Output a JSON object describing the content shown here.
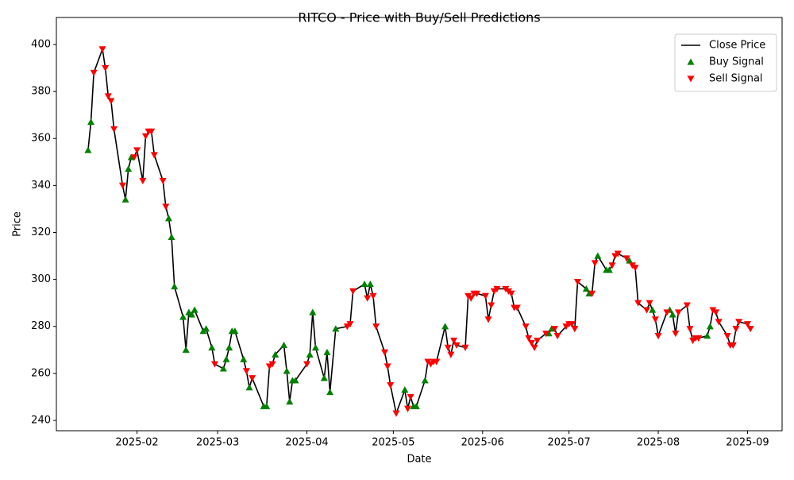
{
  "chart_data": {
    "type": "line",
    "title": "RITCO - Price with Buy/Sell Predictions",
    "x_label": "Date",
    "y_label": "Price",
    "x": [
      "2025-01-15",
      "2025-01-16",
      "2025-01-17",
      "2025-01-20",
      "2025-01-21",
      "2025-01-22",
      "2025-01-23",
      "2025-01-24",
      "2025-01-27",
      "2025-01-28",
      "2025-01-29",
      "2025-01-30",
      "2025-01-31",
      "2025-02-01",
      "2025-02-03",
      "2025-02-04",
      "2025-02-05",
      "2025-02-06",
      "2025-02-07",
      "2025-02-10",
      "2025-02-11",
      "2025-02-12",
      "2025-02-13",
      "2025-02-14",
      "2025-02-17",
      "2025-02-18",
      "2025-02-19",
      "2025-02-20",
      "2025-02-21",
      "2025-02-24",
      "2025-02-25",
      "2025-02-27",
      "2025-02-28",
      "2025-03-03",
      "2025-03-04",
      "2025-03-05",
      "2025-03-06",
      "2025-03-07",
      "2025-03-10",
      "2025-03-11",
      "2025-03-12",
      "2025-03-13",
      "2025-03-17",
      "2025-03-18",
      "2025-03-19",
      "2025-03-20",
      "2025-03-21",
      "2025-03-24",
      "2025-03-25",
      "2025-03-26",
      "2025-03-27",
      "2025-03-28",
      "2025-04-01",
      "2025-04-02",
      "2025-04-03",
      "2025-04-04",
      "2025-04-07",
      "2025-04-08",
      "2025-04-09",
      "2025-04-11",
      "2025-04-15",
      "2025-04-16",
      "2025-04-17",
      "2025-04-21",
      "2025-04-22",
      "2025-04-23",
      "2025-04-24",
      "2025-04-25",
      "2025-04-28",
      "2025-04-29",
      "2025-04-30",
      "2025-05-02",
      "2025-05-05",
      "2025-05-06",
      "2025-05-07",
      "2025-05-08",
      "2025-05-09",
      "2025-05-12",
      "2025-05-13",
      "2025-05-14",
      "2025-05-15",
      "2025-05-16",
      "2025-05-19",
      "2025-05-20",
      "2025-05-21",
      "2025-05-22",
      "2025-05-23",
      "2025-05-26",
      "2025-05-27",
      "2025-05-28",
      "2025-05-29",
      "2025-05-30",
      "2025-06-02",
      "2025-06-03",
      "2025-06-04",
      "2025-06-05",
      "2025-06-06",
      "2025-06-09",
      "2025-06-10",
      "2025-06-11",
      "2025-06-12",
      "2025-06-13",
      "2025-06-16",
      "2025-06-17",
      "2025-06-18",
      "2025-06-19",
      "2025-06-20",
      "2025-06-23",
      "2025-06-24",
      "2025-06-25",
      "2025-06-26",
      "2025-06-27",
      "2025-06-30",
      "2025-07-01",
      "2025-07-02",
      "2025-07-03",
      "2025-07-04",
      "2025-07-07",
      "2025-07-08",
      "2025-07-09",
      "2025-07-10",
      "2025-07-11",
      "2025-07-14",
      "2025-07-15",
      "2025-07-16",
      "2025-07-17",
      "2025-07-18",
      "2025-07-21",
      "2025-07-22",
      "2025-07-23",
      "2025-07-24",
      "2025-07-25",
      "2025-07-28",
      "2025-07-29",
      "2025-07-30",
      "2025-07-31",
      "2025-08-01",
      "2025-08-04",
      "2025-08-05",
      "2025-08-06",
      "2025-08-07",
      "2025-08-08",
      "2025-08-11",
      "2025-08-12",
      "2025-08-13",
      "2025-08-14",
      "2025-08-15",
      "2025-08-18",
      "2025-08-19",
      "2025-08-20",
      "2025-08-21",
      "2025-08-22",
      "2025-08-25",
      "2025-08-26",
      "2025-08-27",
      "2025-08-28",
      "2025-08-29",
      "2025-09-01",
      "2025-09-02"
    ],
    "series": [
      {
        "name": "Close Price",
        "color": "#000000",
        "kind": "line",
        "values": [
          355,
          367,
          388,
          398,
          390,
          378,
          376,
          364,
          340,
          334,
          347,
          352,
          352,
          355,
          342,
          361,
          363,
          363,
          353,
          342,
          331,
          326,
          318,
          297,
          284,
          270,
          286,
          285,
          287,
          278,
          279,
          271,
          264,
          262,
          266,
          271,
          278,
          278,
          266,
          261,
          254,
          258,
          246,
          246,
          263,
          264,
          268,
          272,
          261,
          248,
          257,
          257,
          264,
          268,
          286,
          271,
          258,
          269,
          252,
          279,
          280,
          281,
          295,
          298,
          292,
          298,
          293,
          280,
          269,
          263,
          255,
          243,
          253,
          245,
          250,
          246,
          246,
          257,
          265,
          264,
          265,
          265,
          280,
          271,
          268,
          274,
          272,
          271,
          293,
          292,
          294,
          294,
          293,
          283,
          289,
          295,
          296,
          296,
          295,
          294,
          288,
          288,
          280,
          275,
          273,
          271,
          274,
          277,
          277,
          279,
          279,
          276,
          280,
          281,
          281,
          279,
          299,
          296,
          294,
          294,
          307,
          310,
          304,
          304,
          306,
          310,
          311,
          309,
          308,
          306,
          305,
          290,
          287,
          290,
          287,
          283,
          276,
          286,
          287,
          285,
          277,
          286,
          289,
          279,
          274,
          275,
          275,
          276,
          280,
          287,
          286,
          282,
          276,
          272,
          272,
          279,
          282,
          281,
          279
        ]
      },
      {
        "name": "Buy Signal",
        "color": "#008000",
        "kind": "scatter",
        "marker": "triangle-up",
        "values": [
          355,
          367,
          null,
          null,
          null,
          null,
          null,
          null,
          null,
          334,
          347,
          352,
          null,
          null,
          null,
          null,
          null,
          null,
          null,
          null,
          null,
          326,
          318,
          297,
          284,
          270,
          286,
          285,
          287,
          278,
          279,
          271,
          null,
          262,
          266,
          271,
          278,
          278,
          266,
          null,
          254,
          null,
          246,
          246,
          null,
          null,
          268,
          272,
          261,
          248,
          257,
          257,
          null,
          268,
          286,
          271,
          258,
          269,
          252,
          279,
          null,
          null,
          null,
          298,
          null,
          298,
          null,
          null,
          null,
          null,
          null,
          null,
          253,
          null,
          null,
          246,
          246,
          257,
          null,
          null,
          null,
          null,
          280,
          null,
          null,
          null,
          null,
          null,
          null,
          null,
          null,
          null,
          null,
          null,
          null,
          null,
          null,
          null,
          null,
          null,
          null,
          null,
          null,
          null,
          null,
          null,
          null,
          null,
          277,
          279,
          null,
          null,
          null,
          null,
          null,
          null,
          null,
          296,
          294,
          null,
          null,
          310,
          304,
          304,
          null,
          null,
          null,
          null,
          308,
          null,
          null,
          null,
          null,
          null,
          287,
          null,
          null,
          null,
          287,
          285,
          null,
          null,
          null,
          null,
          null,
          null,
          null,
          276,
          280,
          null,
          null,
          null,
          null,
          null,
          null,
          null,
          null,
          null,
          null
        ]
      },
      {
        "name": "Sell Signal",
        "color": "#ff0000",
        "kind": "scatter",
        "marker": "triangle-down",
        "values": [
          null,
          null,
          388,
          398,
          390,
          378,
          376,
          364,
          340,
          null,
          null,
          null,
          352,
          355,
          342,
          361,
          363,
          363,
          353,
          342,
          331,
          null,
          null,
          null,
          null,
          null,
          null,
          null,
          null,
          null,
          null,
          null,
          264,
          null,
          null,
          null,
          null,
          null,
          null,
          261,
          null,
          258,
          null,
          null,
          263,
          264,
          null,
          null,
          null,
          null,
          null,
          null,
          264,
          null,
          null,
          null,
          null,
          null,
          null,
          null,
          280,
          281,
          295,
          null,
          292,
          null,
          293,
          280,
          269,
          263,
          255,
          243,
          null,
          245,
          250,
          null,
          null,
          null,
          265,
          264,
          265,
          265,
          null,
          271,
          268,
          274,
          272,
          271,
          293,
          292,
          294,
          294,
          293,
          283,
          289,
          295,
          296,
          296,
          295,
          294,
          288,
          288,
          280,
          275,
          273,
          271,
          274,
          277,
          null,
          null,
          279,
          276,
          280,
          281,
          281,
          279,
          299,
          null,
          null,
          294,
          307,
          null,
          null,
          null,
          306,
          310,
          311,
          309,
          null,
          306,
          305,
          290,
          287,
          290,
          null,
          283,
          276,
          286,
          null,
          null,
          277,
          286,
          289,
          279,
          274,
          275,
          275,
          null,
          null,
          287,
          286,
          282,
          276,
          272,
          272,
          279,
          282,
          281,
          279
        ]
      }
    ],
    "xlim": [
      "2025-01-04",
      "2025-09-13"
    ],
    "xticks": [
      {
        "value": "2025-02-01",
        "label": "2025-02"
      },
      {
        "value": "2025-03-01",
        "label": "2025-03"
      },
      {
        "value": "2025-04-01",
        "label": "2025-04"
      },
      {
        "value": "2025-05-01",
        "label": "2025-05"
      },
      {
        "value": "2025-06-01",
        "label": "2025-06"
      },
      {
        "value": "2025-07-01",
        "label": "2025-07"
      },
      {
        "value": "2025-08-01",
        "label": "2025-08"
      },
      {
        "value": "2025-09-01",
        "label": "2025-09"
      }
    ],
    "ylim": [
      235.6,
      411.5
    ],
    "yticks": [
      240,
      260,
      280,
      300,
      320,
      340,
      360,
      380,
      400
    ],
    "grid": false,
    "legend": "upper right"
  }
}
